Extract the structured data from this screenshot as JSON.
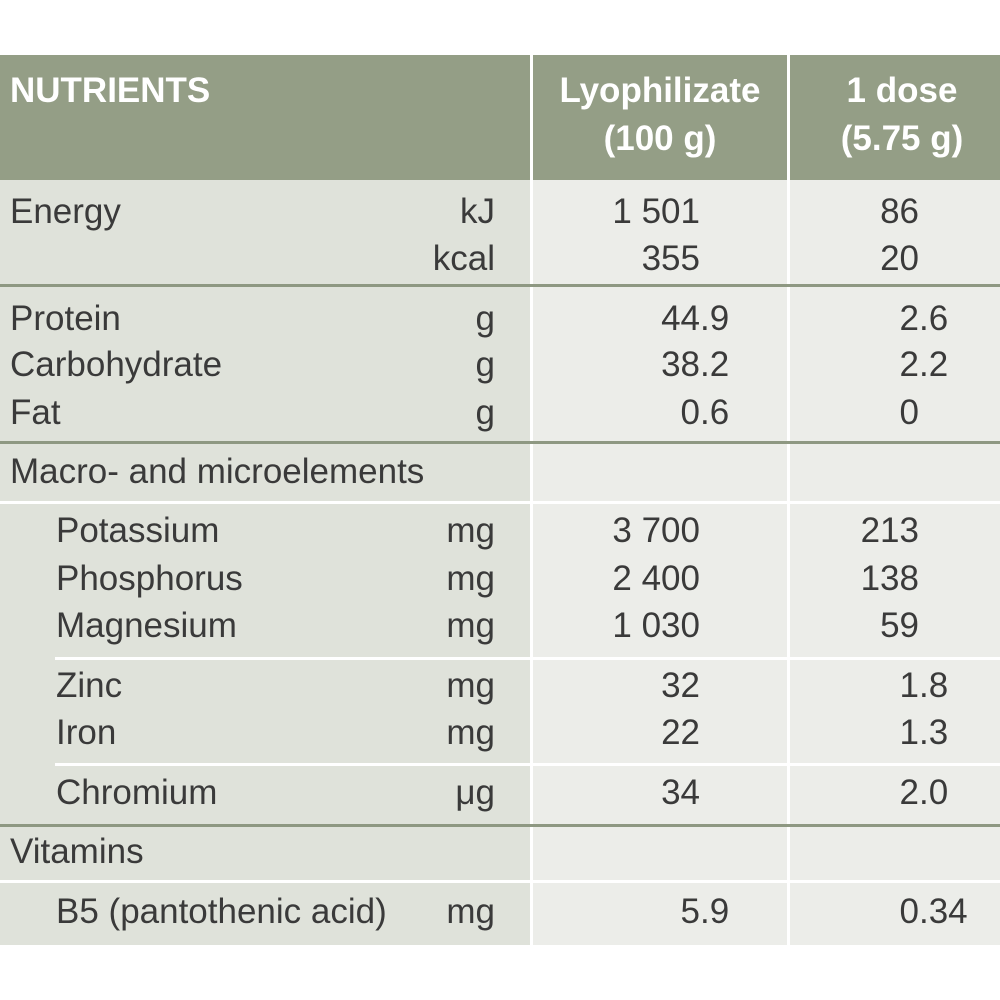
{
  "header": {
    "nutrients": "NUTRIENTS",
    "lyophilizate_line1": "Lyophilizate",
    "lyophilizate_line2": "(100 g)",
    "dose_line1": "1 dose",
    "dose_line2": "(5.75 g)"
  },
  "rows": [
    {
      "label": "Energy",
      "unit": "kJ",
      "per_100g": "1 501",
      "per_dose": "86"
    },
    {
      "unit": "kcal",
      "per_100g": "355",
      "per_dose": "20"
    },
    {
      "label": "Protein",
      "unit": "g",
      "per_100g": "44.9",
      "per_dose": "2.6"
    },
    {
      "label": "Carbohydrate",
      "unit": "g",
      "per_100g": "38.2",
      "per_dose": "2.2"
    },
    {
      "label": "Fat",
      "unit": "g",
      "per_100g": "0.6",
      "per_dose": "0"
    },
    {
      "label": "Macro- and microelements"
    },
    {
      "label": "Potassium",
      "unit": "mg",
      "per_100g": "3 700",
      "per_dose": "213"
    },
    {
      "label": "Phosphorus",
      "unit": "mg",
      "per_100g": "2 400",
      "per_dose": "138"
    },
    {
      "label": "Magnesium",
      "unit": "mg",
      "per_100g": "1 030",
      "per_dose": "59"
    },
    {
      "label": "Zinc",
      "unit": "mg",
      "per_100g": "32",
      "per_dose": "1.8"
    },
    {
      "label": "Iron",
      "unit": "mg",
      "per_100g": "22",
      "per_dose": "1.3"
    },
    {
      "label": "Chromium",
      "unit": "μg",
      "per_100g": "34",
      "per_dose": "2.0"
    },
    {
      "label": "Vitamins"
    },
    {
      "label": "B5 (pantothenic acid)",
      "unit": "mg",
      "per_100g": "5.9",
      "per_dose": "0.34"
    }
  ],
  "colors": {
    "header_bg": "#949e86",
    "header_text": "#ffffff",
    "label_column_bg": "#dfe2da",
    "value_column_bg": "#ecede9",
    "group_rule": "#8e9882",
    "text": "#3a3a3a"
  }
}
